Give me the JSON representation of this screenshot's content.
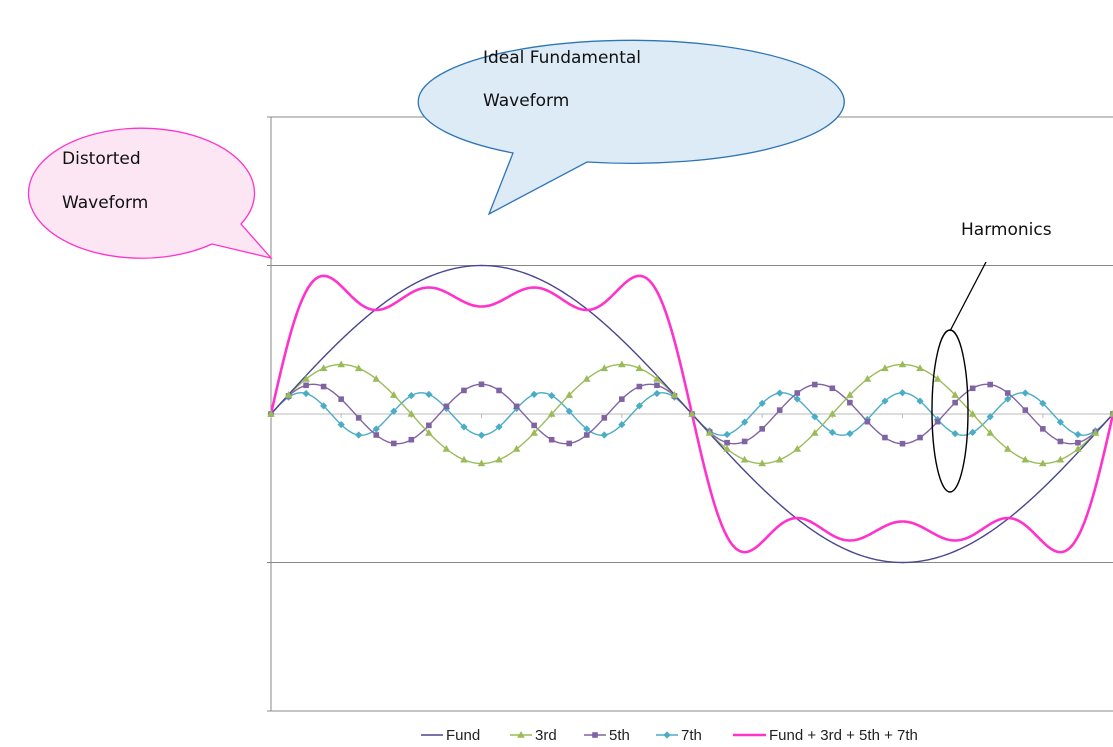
{
  "chart_data": {
    "type": "line",
    "title": "",
    "xlabel": "",
    "ylabel": "",
    "x_range": [
      0,
      360
    ],
    "x_step": 7.5,
    "ylim": [
      -2,
      2
    ],
    "grid": "horizontal",
    "legend_position": "bottom",
    "series": [
      {
        "name": "Fund",
        "harmonics": [
          1
        ],
        "amplitude": 1,
        "color": "#4a4690",
        "marker": "none"
      },
      {
        "name": "3rd",
        "harmonics": [
          3
        ],
        "amplitude": 0.333,
        "color": "#9bbb59",
        "marker": "triangle"
      },
      {
        "name": "5th",
        "harmonics": [
          5
        ],
        "amplitude": 0.2,
        "color": "#8064a2",
        "marker": "square"
      },
      {
        "name": "7th",
        "harmonics": [
          7
        ],
        "amplitude": 0.143,
        "color": "#4bacc6",
        "marker": "diamond"
      },
      {
        "name": "Fund + 3rd + 5th + 7th",
        "harmonics": [
          1,
          3,
          5,
          7
        ],
        "amplitude": null,
        "color": "#ff33cc",
        "marker": "none"
      }
    ]
  },
  "annotations": {
    "ideal": [
      "Ideal Fundamental",
      "Waveform"
    ],
    "distorted": [
      "Distorted",
      "Waveform"
    ],
    "harmonics": "Harmonics"
  },
  "colors": {
    "ideal_callout_stroke": "#2e75b6",
    "ideal_callout_fill": "#ddebf7",
    "distorted_callout_stroke": "#ff33cc",
    "distorted_callout_fill": "#fde6f4",
    "grid": "#888888"
  }
}
